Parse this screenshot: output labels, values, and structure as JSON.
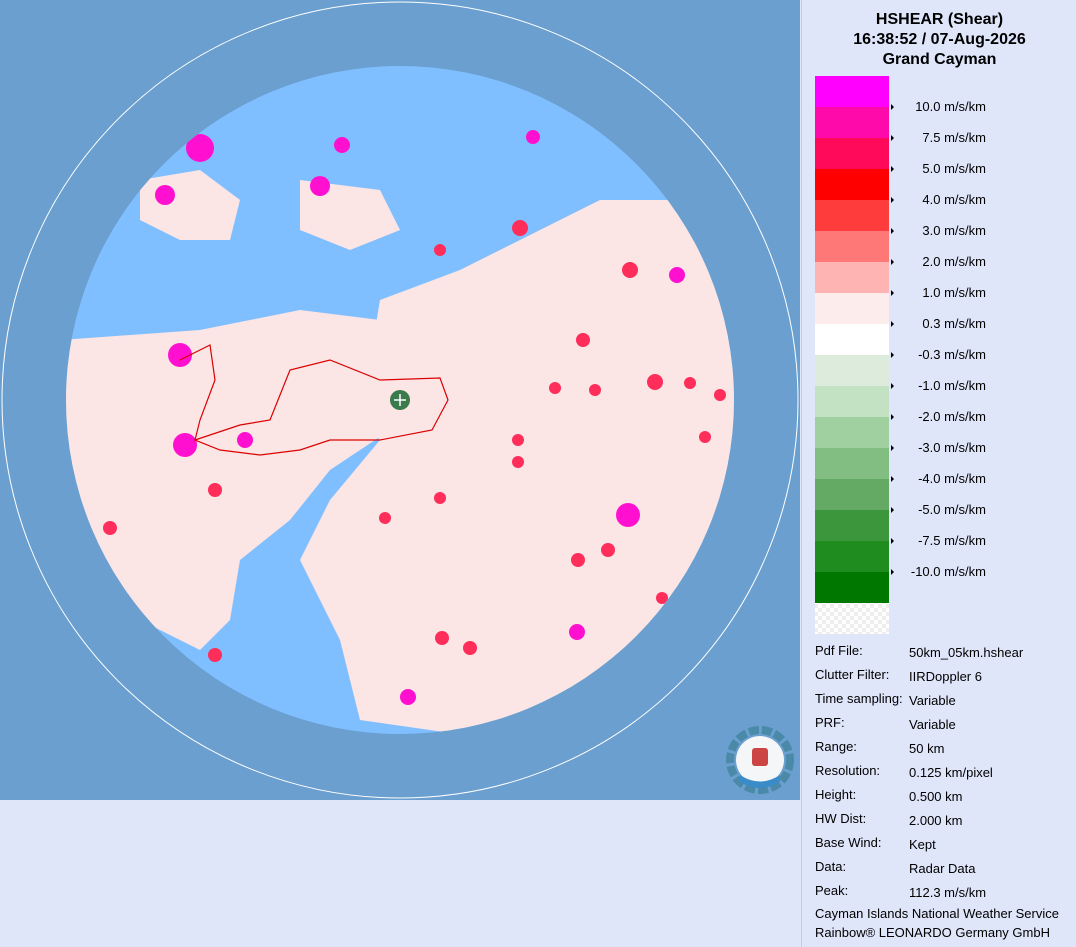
{
  "header": {
    "title": "HSHEAR (Shear)",
    "time": "16:38:52 / 07-Aug-2026",
    "site": "Grand Cayman"
  },
  "legend": {
    "colors": [
      "#ff00ff",
      "#ff0aaa",
      "#ff0a5a",
      "#ff0000",
      "#ff3c3c",
      "#ff7878",
      "#ffb4b4",
      "#fdecec",
      "#ffffff",
      "#dcebdc",
      "#c3e1c3",
      "#a0d0a0",
      "#82be82",
      "#64aa64",
      "#3c963c",
      "#1e8c1e",
      "#007800"
    ],
    "labels": [
      "10.0 m/s/km",
      "7.5 m/s/km",
      "5.0 m/s/km",
      "4.0 m/s/km",
      "3.0 m/s/km",
      "2.0 m/s/km",
      "1.0 m/s/km",
      "0.3 m/s/km",
      "-0.3 m/s/km",
      "-1.0 m/s/km",
      "-2.0 m/s/km",
      "-3.0 m/s/km",
      "-4.0 m/s/km",
      "-5.0 m/s/km",
      "-7.5 m/s/km",
      "-10.0 m/s/km"
    ]
  },
  "info": [
    [
      "Pdf File:",
      "50km_05km.hshear"
    ],
    [
      "Clutter Filter:",
      "IIRDoppler 6"
    ],
    [
      "Time sampling:",
      "Variable"
    ],
    [
      "PRF:",
      "Variable"
    ],
    [
      "Range:",
      "50 km"
    ],
    [
      "Resolution:",
      "0.125 km/pixel"
    ],
    [
      "Height:",
      "0.500 km"
    ],
    [
      "HW Dist:",
      "2.000 km"
    ],
    [
      "Base Wind:",
      "Kept"
    ],
    [
      "Data:",
      "Radar Data"
    ],
    [
      "Peak:",
      "112.3 m/s/km"
    ]
  ],
  "footer": [
    "Cayman Islands National Weather Service",
    "Rainbow® LEONARDO Germany GmbH"
  ]
}
